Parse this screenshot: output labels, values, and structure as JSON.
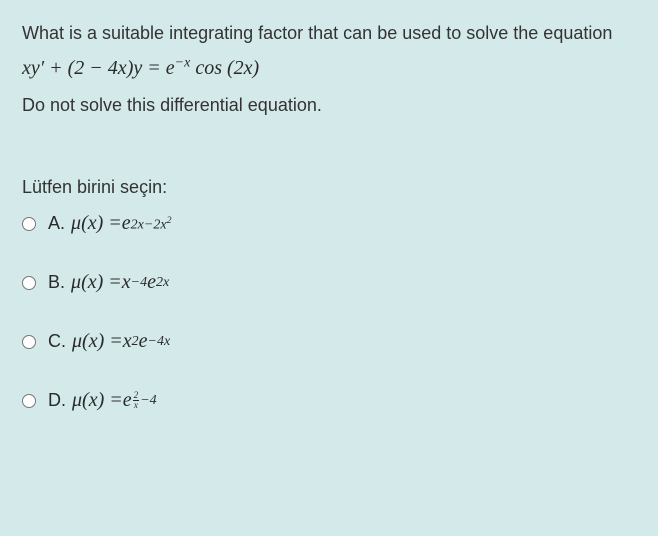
{
  "question": {
    "intro": "What is a suitable integrating factor that can be used to solve the equation",
    "equation_html": "<span style='font-style:italic'>xy</span>&#8242; + (2 &minus; 4<span style='font-style:italic'>x</span>)<span style='font-style:italic'>y</span> = <span style='font-style:italic'>e</span><sup>&minus;<span style='font-style:italic'>x</span></sup> cos (2<span style='font-style:italic'>x</span>)",
    "followup": "Do not solve this differential equation."
  },
  "prompt": "Lütfen birini seçin:",
  "options": {
    "A": {
      "prefix": "A.",
      "math_html": "<span style='font-style:italic'>&mu;</span>(<span style='font-style:italic'>x</span>) = <span style='font-style:italic'>e</span><sup>2<span style='font-style:italic'>x</span>&minus;2<span style='font-style:italic'>x</span><sup>2</sup></sup>"
    },
    "B": {
      "prefix": "B.",
      "math_html": "<span style='font-style:italic'>&mu;</span>(<span style='font-style:italic'>x</span>) = <span style='font-style:italic'>x</span><sup>&minus;4</sup><span style='font-style:italic'>e</span><sup>2<span style='font-style:italic'>x</span></sup>"
    },
    "C": {
      "prefix": "C.",
      "math_html": "<span style='font-style:italic'>&mu;</span>(<span style='font-style:italic'>x</span>) = <span style='font-style:italic'>x</span><sup>2</sup><span style='font-style:italic'>e</span><sup>&minus;4<span style='font-style:italic'>x</span></sup>"
    },
    "D": {
      "prefix": "D.",
      "math_html": "<span style='font-style:italic'>&mu;</span>(<span style='font-style:italic'>x</span>) = <span style='font-style:italic'>e</span><sup><span class='frac'><span class='num'>2</span><span class='den' style='font-style:italic'>x</span></span>&minus;4</sup>"
    }
  },
  "colors": {
    "background": "#d4e9e9",
    "text": "#2a2a2a"
  }
}
